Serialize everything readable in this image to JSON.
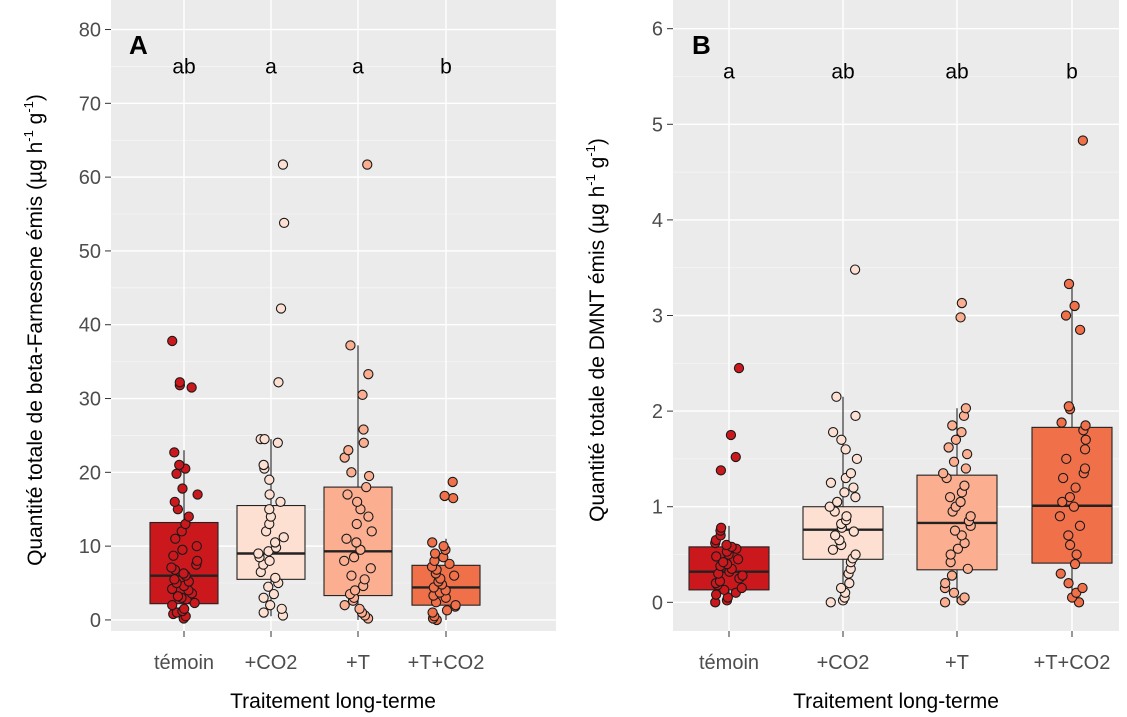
{
  "figure": {
    "xlabel": "Traitement long-terme",
    "colors": {
      "témoin": "#cb181d",
      "+CO2": "#fee0d2",
      "+T": "#fcae91",
      "+T+CO2": "#f0704a",
      "panel_bg": "#ebebeb",
      "grid": "#ffffff"
    }
  },
  "chart_data": [
    {
      "type": "boxplot",
      "panel_label": "A",
      "ylabel": "Quantité totale de beta-Farnesene émis (µg h⁻¹ g⁻¹)",
      "ylabel_main": "Quantité totale de beta-Farnesene émis (µg h",
      "ylabel_unit_mid": " g",
      "ylabel_unit_end": ")",
      "ylabel_sup": "-1",
      "xlabel": "Traitement long-terme",
      "categories": [
        "témoin",
        "+CO2",
        "+T",
        "+T+CO2"
      ],
      "ylim": [
        -1.5,
        84
      ],
      "yticks": [
        0,
        10,
        20,
        30,
        40,
        50,
        60,
        70,
        80
      ],
      "grid": true,
      "significance": [
        "ab",
        "a",
        "a",
        "b"
      ],
      "sig_y": 75,
      "boxes": [
        {
          "q1": 2.2,
          "median": 6.0,
          "q3": 13.2,
          "whisker_low": 0,
          "whisker_high": 23.0
        },
        {
          "q1": 5.5,
          "median": 9.0,
          "q3": 15.5,
          "whisker_low": 0.5,
          "whisker_high": 24.5
        },
        {
          "q1": 3.3,
          "median": 9.3,
          "q3": 18.0,
          "whisker_low": 0,
          "whisker_high": 37.2
        },
        {
          "q1": 2.0,
          "median": 4.4,
          "q3": 7.4,
          "whisker_low": 0,
          "whisker_high": 11.0
        }
      ],
      "points": [
        [
          0.2,
          0.5,
          0.8,
          1,
          1.2,
          1.5,
          2,
          2.3,
          2.8,
          3,
          3.2,
          3.6,
          4,
          4.2,
          4.6,
          5,
          5.2,
          5.5,
          6,
          6.3,
          6.8,
          7.1,
          7.5,
          8,
          8.7,
          9.5,
          10,
          11,
          12,
          13,
          14,
          15,
          16,
          17,
          17.8,
          19.8,
          20.5,
          21,
          22.7,
          31.5,
          31.8,
          32.2,
          37.8
        ],
        [
          0.6,
          1,
          1.5,
          2,
          3,
          3.5,
          4.5,
          5,
          5.7,
          6.5,
          7.5,
          8,
          8.5,
          9,
          9.3,
          9.8,
          10.5,
          11.2,
          12,
          13,
          14,
          15,
          16,
          17,
          19,
          20.5,
          21,
          24,
          24.5,
          24.5,
          32.2,
          42.2,
          53.8,
          61.7
        ],
        [
          0.2,
          0.6,
          1,
          1.5,
          2,
          2.6,
          3,
          3.5,
          4,
          4.6,
          5.5,
          6,
          7,
          8,
          8.5,
          9.5,
          10.5,
          11,
          12,
          13,
          14,
          15,
          16,
          17,
          18,
          19.5,
          20,
          22,
          23,
          24,
          25.8,
          30.5,
          33.3,
          37.2,
          61.7
        ],
        [
          0,
          0.2,
          0.5,
          1,
          1.3,
          1.8,
          2,
          2.4,
          3,
          3.3,
          3.7,
          4,
          4.4,
          4.8,
          5.2,
          5.6,
          6,
          6.3,
          6.8,
          7.2,
          7.6,
          8,
          8.5,
          9,
          9.5,
          10,
          10.5,
          16.5,
          16.8,
          18.7
        ]
      ]
    },
    {
      "type": "boxplot",
      "panel_label": "B",
      "ylabel": "Quantité totale de DMNT émis (µg h⁻¹ g⁻¹)",
      "ylabel_main": "Quantité totale de DMNT émis (µg h",
      "ylabel_unit_mid": " g",
      "ylabel_unit_end": ")",
      "ylabel_sup": "-1",
      "xlabel": "Traitement long-terme",
      "categories": [
        "témoin",
        "+CO2",
        "+T",
        "+T+CO2"
      ],
      "ylim": [
        -0.3,
        6.3
      ],
      "yticks": [
        0,
        1,
        2,
        3,
        4,
        5,
        6
      ],
      "grid": true,
      "significance": [
        "a",
        "ab",
        "ab",
        "b"
      ],
      "sig_y": 5.55,
      "boxes": [
        {
          "q1": 0.13,
          "median": 0.32,
          "q3": 0.58,
          "whisker_low": 0,
          "whisker_high": 0.8
        },
        {
          "q1": 0.45,
          "median": 0.76,
          "q3": 1.0,
          "whisker_low": 0,
          "whisker_high": 2.15
        },
        {
          "q1": 0.34,
          "median": 0.83,
          "q3": 1.33,
          "whisker_low": 0,
          "whisker_high": 2.03
        },
        {
          "q1": 0.41,
          "median": 1.01,
          "q3": 1.83,
          "whisker_low": 0,
          "whisker_high": 3.33
        }
      ],
      "points": [
        [
          0,
          0.02,
          0.05,
          0.08,
          0.1,
          0.13,
          0.15,
          0.18,
          0.2,
          0.22,
          0.25,
          0.28,
          0.3,
          0.32,
          0.35,
          0.38,
          0.4,
          0.42,
          0.45,
          0.48,
          0.5,
          0.53,
          0.56,
          0.58,
          0.6,
          0.62,
          0.65,
          0.7,
          0.75,
          0.78,
          1.38,
          1.52,
          1.75,
          2.45
        ],
        [
          0,
          0.02,
          0.05,
          0.1,
          0.15,
          0.2,
          0.3,
          0.35,
          0.42,
          0.46,
          0.5,
          0.55,
          0.6,
          0.65,
          0.7,
          0.74,
          0.78,
          0.82,
          0.86,
          0.9,
          0.95,
          1.0,
          1.05,
          1.1,
          1.15,
          1.2,
          1.25,
          1.3,
          1.35,
          1.5,
          1.6,
          1.7,
          1.78,
          1.95,
          2.15,
          3.48
        ],
        [
          0,
          0.02,
          0.05,
          0.1,
          0.15,
          0.2,
          0.28,
          0.35,
          0.42,
          0.5,
          0.56,
          0.62,
          0.7,
          0.75,
          0.8,
          0.85,
          0.9,
          0.95,
          1.0,
          1.05,
          1.1,
          1.15,
          1.22,
          1.3,
          1.35,
          1.4,
          1.47,
          1.55,
          1.62,
          1.7,
          1.78,
          1.85,
          1.95,
          2.03,
          2.98,
          3.13
        ],
        [
          0,
          0.05,
          0.1,
          0.15,
          0.2,
          0.3,
          0.4,
          0.5,
          0.6,
          0.7,
          0.8,
          0.9,
          1.0,
          1.05,
          1.1,
          1.2,
          1.3,
          1.35,
          1.4,
          1.5,
          1.6,
          1.7,
          1.8,
          1.85,
          1.88,
          2.02,
          2.05,
          2.85,
          3.0,
          3.1,
          3.33,
          4.83
        ]
      ]
    }
  ]
}
